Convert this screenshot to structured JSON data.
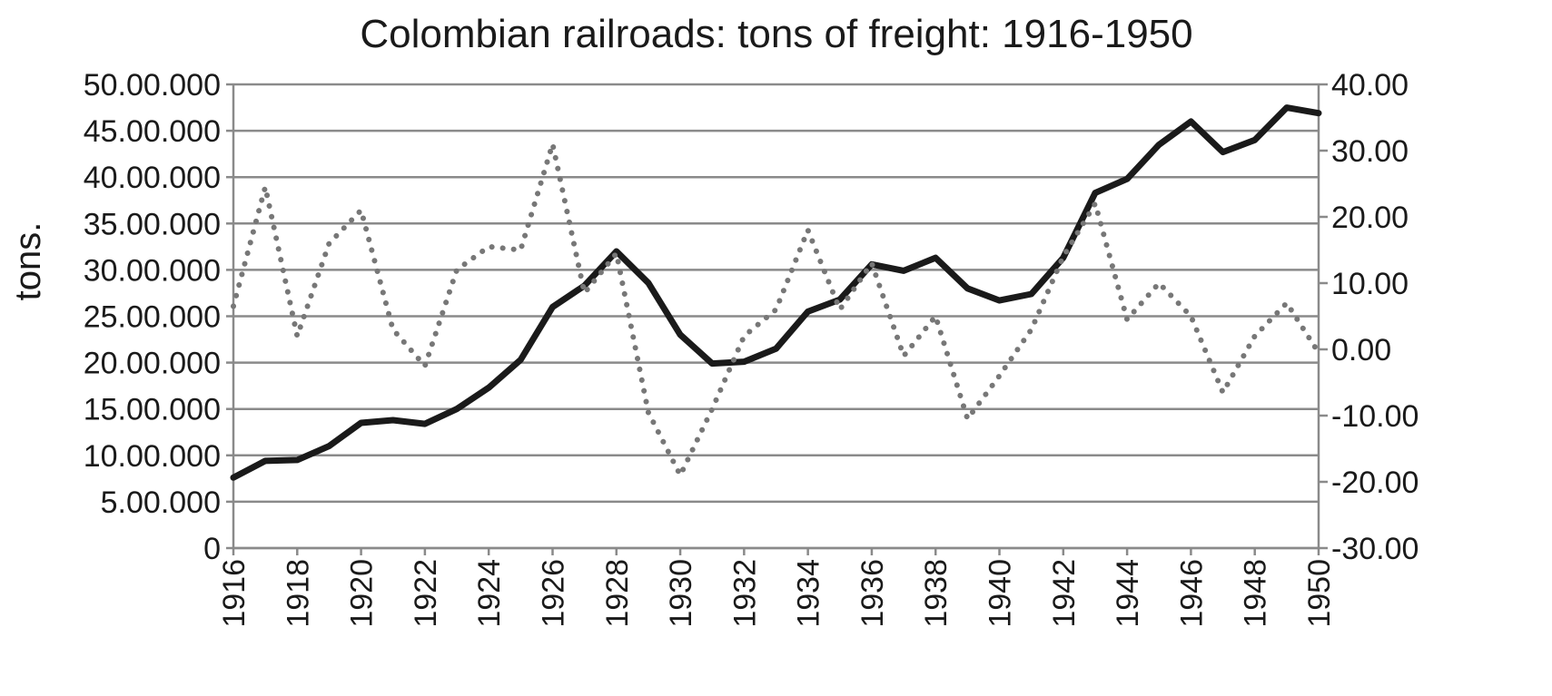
{
  "chart_data": {
    "type": "line",
    "title": "Colombian railroads: tons of freight: 1916-1950",
    "ylabel": "tons.",
    "x": [
      1916,
      1917,
      1918,
      1919,
      1920,
      1921,
      1922,
      1923,
      1924,
      1925,
      1926,
      1927,
      1928,
      1929,
      1930,
      1931,
      1932,
      1933,
      1934,
      1935,
      1936,
      1937,
      1938,
      1939,
      1940,
      1941,
      1942,
      1943,
      1944,
      1945,
      1946,
      1947,
      1948,
      1949,
      1950
    ],
    "xticks": [
      "1916",
      "1918",
      "1920",
      "1922",
      "1924",
      "1926",
      "1928",
      "1930",
      "1932",
      "1934",
      "1936",
      "1938",
      "1940",
      "1942",
      "1944",
      "1946",
      "1948",
      "1950"
    ],
    "yticks_left": [
      "0",
      "5.00.000",
      "10.00.000",
      "15.00.000",
      "20.00.000",
      "25.00.000",
      "30.00.000",
      "35.00.000",
      "40.00.000",
      "45.00.000",
      "50.00.000"
    ],
    "yticks_right": [
      "-30.00",
      "-20.00",
      "-10.00",
      "0.00",
      "10.00",
      "20.00",
      "30.00",
      "40.00"
    ],
    "ylim_left": [
      0,
      50000000
    ],
    "ylim_right": [
      -30,
      40
    ],
    "grid": true,
    "series": [
      {
        "axis": "left",
        "style": "solid",
        "color": "#1a1a1a",
        "values": [
          7600000,
          9400000,
          9500000,
          11000000,
          13500000,
          13800000,
          13400000,
          15000000,
          17300000,
          20300000,
          26000000,
          28300000,
          32000000,
          28600000,
          23000000,
          19900000,
          20100000,
          21500000,
          25500000,
          26800000,
          30600000,
          29900000,
          31300000,
          28000000,
          26700000,
          27400000,
          31300000,
          38300000,
          39800000,
          43500000,
          46000000,
          42700000,
          44000000,
          47500000,
          46900000
        ]
      },
      {
        "axis": "right",
        "style": "dotted",
        "color": "#777777",
        "values": [
          6.5,
          24.5,
          2,
          16,
          21,
          3,
          -2.5,
          12,
          15.5,
          15,
          31,
          8.5,
          14.5,
          -9.5,
          -19,
          -9,
          2,
          6,
          18,
          6,
          13,
          -1,
          5,
          -10.5,
          -4,
          3,
          14,
          22,
          4.5,
          10,
          5,
          -6.5,
          2,
          7,
          -0.5
        ]
      }
    ]
  }
}
